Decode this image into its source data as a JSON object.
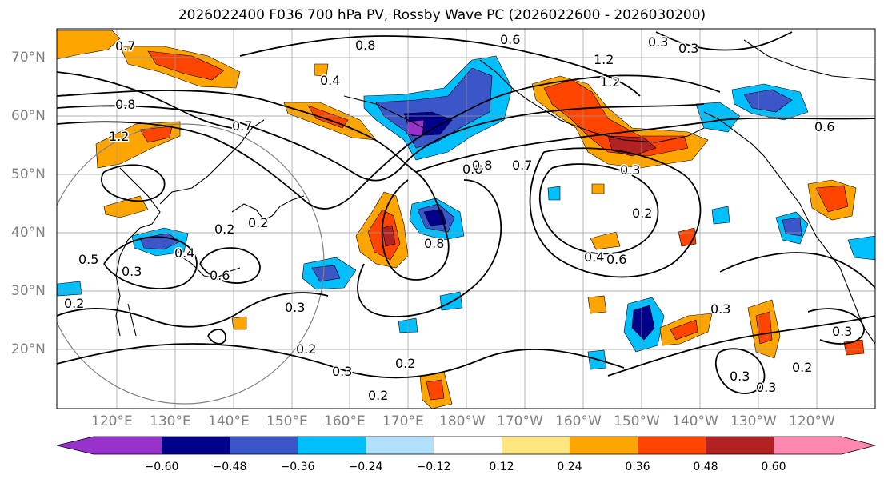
{
  "title": "2026022400 F036 700 hPa PV, Rossby Wave PC (2026022600 - 2026030200)",
  "map": {
    "lat_labels": [
      "70°N",
      "60°N",
      "50°N",
      "40°N",
      "30°N",
      "20°N"
    ],
    "lon_labels": [
      "120°E",
      "130°E",
      "140°E",
      "150°E",
      "160°E",
      "170°E",
      "180°W",
      "170°W",
      "160°W",
      "150°W",
      "140°W",
      "130°W",
      "120°W"
    ],
    "contour_labels": [
      "0.7",
      "0.8",
      "0.6",
      "0.3",
      "0.3",
      "1.2",
      "1.2",
      "0.4",
      "0.8",
      "1.2",
      "0.7",
      "0.8",
      "0.7",
      "0.3",
      "0.4",
      "0.2",
      "0.2",
      "0.5",
      "0.6",
      "0.3",
      "0.3",
      "0.2",
      "0.2",
      "0.3",
      "0.2",
      "0.2",
      "0.6",
      "0.4",
      "0.8",
      "0.8",
      "0.2",
      "0.3",
      "0.3",
      "0.2",
      "0.3",
      "0.3",
      "0.6"
    ]
  },
  "colorbar": {
    "ticks": [
      "−0.60",
      "−0.48",
      "−0.36",
      "−0.24",
      "−0.12",
      "0.12",
      "0.24",
      "0.36",
      "0.48",
      "0.60"
    ],
    "colors": [
      "#9932cc",
      "#00008b",
      "#3a56c8",
      "#00bfff",
      "#b0e0fa",
      "#ffffff",
      "#ffe680",
      "#ffa500",
      "#ff4500",
      "#b22222",
      "#ff88b0"
    ]
  }
}
